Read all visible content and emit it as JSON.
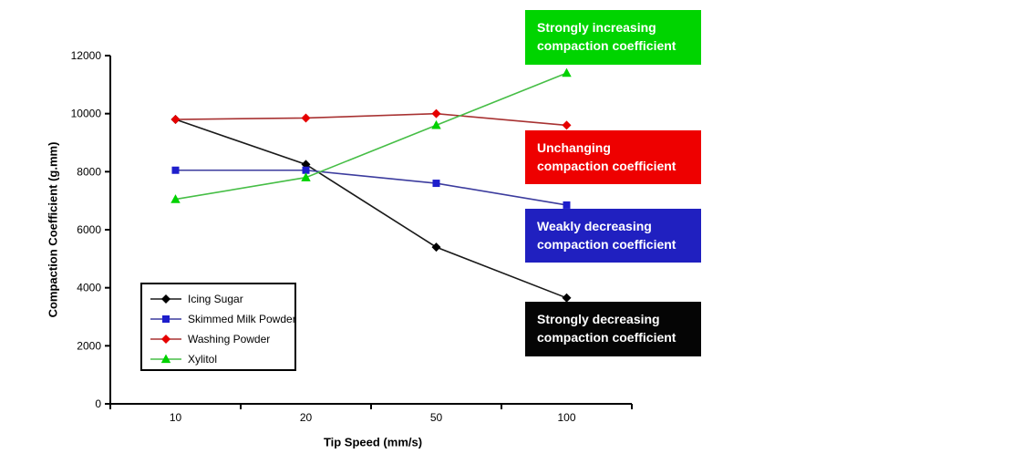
{
  "chart_data": {
    "type": "line",
    "title": "",
    "xlabel": "Tip Speed (mm/s)",
    "ylabel": "Compaction Coefficient (g.mm)",
    "categories": [
      "10",
      "20",
      "50",
      "100"
    ],
    "ylim": [
      0,
      12000
    ],
    "yticks": [
      0,
      2000,
      4000,
      6000,
      8000,
      10000,
      12000
    ],
    "grid": false,
    "legend_position": "inside-lower-left",
    "axis_color": "#000000",
    "series": [
      {
        "name": "Icing Sugar",
        "marker": "diamond",
        "line_color": "#1a1a1a",
        "marker_color": "#000000",
        "values": [
          9800,
          8250,
          5400,
          3650
        ]
      },
      {
        "name": "Skimmed Milk Powder",
        "marker": "square",
        "line_color": "#3c3c9e",
        "marker_color": "#1e1ecc",
        "values": [
          8050,
          8050,
          7600,
          6850
        ]
      },
      {
        "name": "Washing Powder",
        "marker": "diamond",
        "line_color": "#a83232",
        "marker_color": "#e60000",
        "values": [
          9800,
          9850,
          10000,
          9600
        ]
      },
      {
        "name": "Xylitol",
        "marker": "triangle",
        "line_color": "#46be46",
        "marker_color": "#00d200",
        "values": [
          7050,
          7800,
          9600,
          11400
        ]
      }
    ],
    "annotations": [
      {
        "text": "Strongly increasing\ncompaction coefficient",
        "bg": "#00d400",
        "fg": "#ffffff"
      },
      {
        "text": "Unchanging\ncompaction coefficient",
        "bg": "#ee0000",
        "fg": "#ffffff"
      },
      {
        "text": "Weakly decreasing\ncompaction coefficient",
        "bg": "#2020c0",
        "fg": "#ffffff"
      },
      {
        "text": "Strongly decreasing\ncompaction coefficient",
        "bg": "#050505",
        "fg": "#ffffff"
      }
    ]
  }
}
